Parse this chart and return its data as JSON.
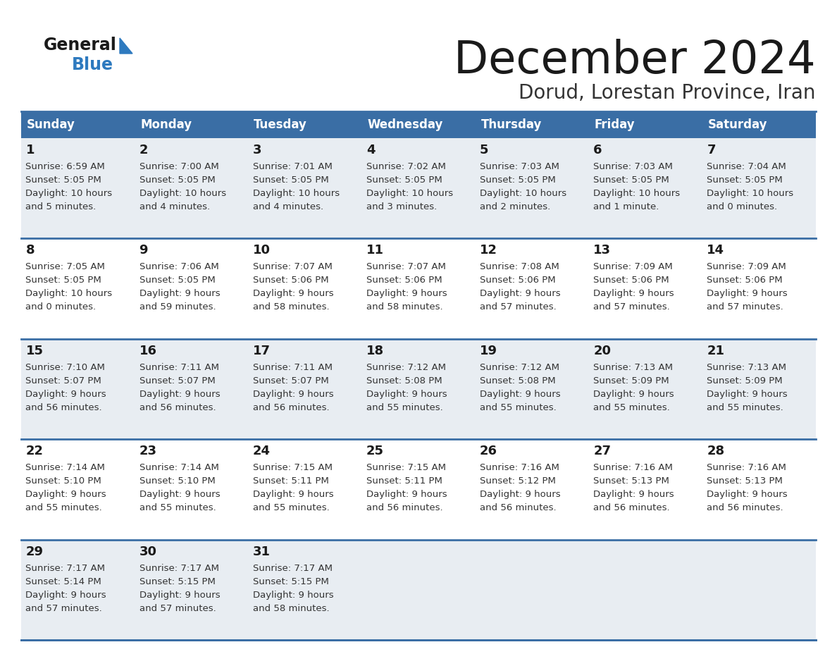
{
  "title": "December 2024",
  "subtitle": "Dorud, Lorestan Province, Iran",
  "header_color": "#3a6ea5",
  "header_text_color": "#ffffff",
  "row_bg_odd": "#ffffff",
  "row_bg_even": "#e8edf2",
  "border_color": "#3a6ea5",
  "separator_color": "#3a6ea5",
  "day_names": [
    "Sunday",
    "Monday",
    "Tuesday",
    "Wednesday",
    "Thursday",
    "Friday",
    "Saturday"
  ],
  "title_color": "#1a1a1a",
  "subtitle_color": "#333333",
  "day_num_color": "#1a1a1a",
  "cell_text_color": "#333333",
  "logo_general_color": "#1a1a1a",
  "logo_blue_color": "#2e7abf",
  "weeks": [
    [
      {
        "day": 1,
        "sunrise": "6:59 AM",
        "sunset": "5:05 PM",
        "daylight": "10 hours and 5 minutes."
      },
      {
        "day": 2,
        "sunrise": "7:00 AM",
        "sunset": "5:05 PM",
        "daylight": "10 hours and 4 minutes."
      },
      {
        "day": 3,
        "sunrise": "7:01 AM",
        "sunset": "5:05 PM",
        "daylight": "10 hours and 4 minutes."
      },
      {
        "day": 4,
        "sunrise": "7:02 AM",
        "sunset": "5:05 PM",
        "daylight": "10 hours and 3 minutes."
      },
      {
        "day": 5,
        "sunrise": "7:03 AM",
        "sunset": "5:05 PM",
        "daylight": "10 hours and 2 minutes."
      },
      {
        "day": 6,
        "sunrise": "7:03 AM",
        "sunset": "5:05 PM",
        "daylight": "10 hours and 1 minute."
      },
      {
        "day": 7,
        "sunrise": "7:04 AM",
        "sunset": "5:05 PM",
        "daylight": "10 hours and 0 minutes."
      }
    ],
    [
      {
        "day": 8,
        "sunrise": "7:05 AM",
        "sunset": "5:05 PM",
        "daylight": "10 hours and 0 minutes."
      },
      {
        "day": 9,
        "sunrise": "7:06 AM",
        "sunset": "5:05 PM",
        "daylight": "9 hours and 59 minutes."
      },
      {
        "day": 10,
        "sunrise": "7:07 AM",
        "sunset": "5:06 PM",
        "daylight": "9 hours and 58 minutes."
      },
      {
        "day": 11,
        "sunrise": "7:07 AM",
        "sunset": "5:06 PM",
        "daylight": "9 hours and 58 minutes."
      },
      {
        "day": 12,
        "sunrise": "7:08 AM",
        "sunset": "5:06 PM",
        "daylight": "9 hours and 57 minutes."
      },
      {
        "day": 13,
        "sunrise": "7:09 AM",
        "sunset": "5:06 PM",
        "daylight": "9 hours and 57 minutes."
      },
      {
        "day": 14,
        "sunrise": "7:09 AM",
        "sunset": "5:06 PM",
        "daylight": "9 hours and 57 minutes."
      }
    ],
    [
      {
        "day": 15,
        "sunrise": "7:10 AM",
        "sunset": "5:07 PM",
        "daylight": "9 hours and 56 minutes."
      },
      {
        "day": 16,
        "sunrise": "7:11 AM",
        "sunset": "5:07 PM",
        "daylight": "9 hours and 56 minutes."
      },
      {
        "day": 17,
        "sunrise": "7:11 AM",
        "sunset": "5:07 PM",
        "daylight": "9 hours and 56 minutes."
      },
      {
        "day": 18,
        "sunrise": "7:12 AM",
        "sunset": "5:08 PM",
        "daylight": "9 hours and 55 minutes."
      },
      {
        "day": 19,
        "sunrise": "7:12 AM",
        "sunset": "5:08 PM",
        "daylight": "9 hours and 55 minutes."
      },
      {
        "day": 20,
        "sunrise": "7:13 AM",
        "sunset": "5:09 PM",
        "daylight": "9 hours and 55 minutes."
      },
      {
        "day": 21,
        "sunrise": "7:13 AM",
        "sunset": "5:09 PM",
        "daylight": "9 hours and 55 minutes."
      }
    ],
    [
      {
        "day": 22,
        "sunrise": "7:14 AM",
        "sunset": "5:10 PM",
        "daylight": "9 hours and 55 minutes."
      },
      {
        "day": 23,
        "sunrise": "7:14 AM",
        "sunset": "5:10 PM",
        "daylight": "9 hours and 55 minutes."
      },
      {
        "day": 24,
        "sunrise": "7:15 AM",
        "sunset": "5:11 PM",
        "daylight": "9 hours and 55 minutes."
      },
      {
        "day": 25,
        "sunrise": "7:15 AM",
        "sunset": "5:11 PM",
        "daylight": "9 hours and 56 minutes."
      },
      {
        "day": 26,
        "sunrise": "7:16 AM",
        "sunset": "5:12 PM",
        "daylight": "9 hours and 56 minutes."
      },
      {
        "day": 27,
        "sunrise": "7:16 AM",
        "sunset": "5:13 PM",
        "daylight": "9 hours and 56 minutes."
      },
      {
        "day": 28,
        "sunrise": "7:16 AM",
        "sunset": "5:13 PM",
        "daylight": "9 hours and 56 minutes."
      }
    ],
    [
      {
        "day": 29,
        "sunrise": "7:17 AM",
        "sunset": "5:14 PM",
        "daylight": "9 hours and 57 minutes."
      },
      {
        "day": 30,
        "sunrise": "7:17 AM",
        "sunset": "5:15 PM",
        "daylight": "9 hours and 57 minutes."
      },
      {
        "day": 31,
        "sunrise": "7:17 AM",
        "sunset": "5:15 PM",
        "daylight": "9 hours and 58 minutes."
      },
      null,
      null,
      null,
      null
    ]
  ]
}
